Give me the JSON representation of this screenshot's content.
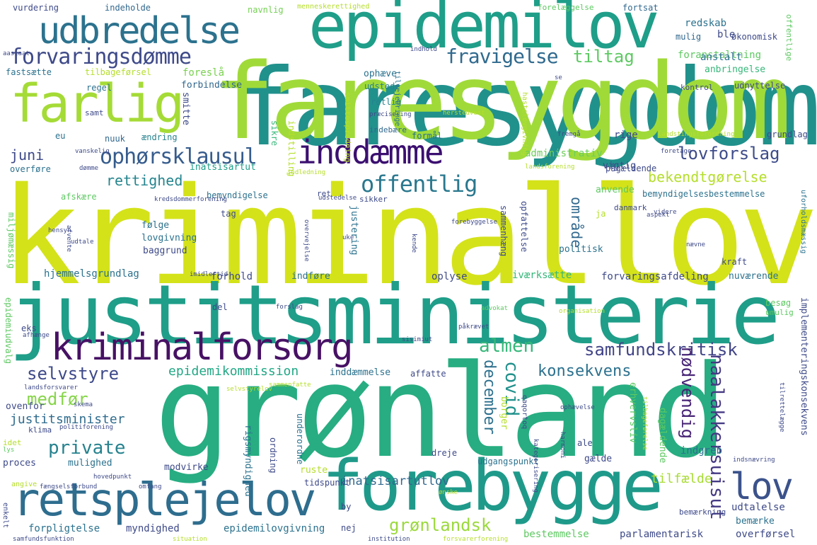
{
  "words": [
    {
      "text": "kriminallov",
      "color": "#d4e21a"
    },
    {
      "text": "grønland",
      "color": "#27ad81"
    },
    {
      "text": "justitsministerie",
      "color": "#1f9e89"
    },
    {
      "text": "faresygdom",
      "color": "#21918c"
    },
    {
      "text": "faresygdom",
      "color": "#a0da39"
    },
    {
      "text": "epidemilov",
      "color": "#1f9e89"
    },
    {
      "text": "forebygge",
      "color": "#1f9a8a"
    },
    {
      "text": "farlig",
      "color": "#a5db36"
    },
    {
      "text": "udbredelse",
      "color": "#2c728e"
    },
    {
      "text": "retsplejelov",
      "color": "#2e6d8e"
    },
    {
      "text": "kriminalforsorg",
      "color": "#471164"
    },
    {
      "text": "inddæmme",
      "color": "#3b0f70"
    },
    {
      "text": "forvaringsdømme",
      "color": "#3e4a89"
    },
    {
      "text": "lov",
      "color": "#3b528b"
    },
    {
      "text": "ophørsklausul",
      "color": "#365c8d"
    },
    {
      "text": "offentlig",
      "color": "#2a788e"
    },
    {
      "text": "fravigelse",
      "color": "#306a8e"
    },
    {
      "text": "lovforslag",
      "color": "#3e4c8a"
    },
    {
      "text": "tiltag",
      "color": "#5ec962"
    },
    {
      "text": "samfundskritisk",
      "color": "#414487"
    },
    {
      "text": "almen",
      "color": "#35b779"
    },
    {
      "text": "konsekvens",
      "color": "#2c718e"
    },
    {
      "text": "private",
      "color": "#26828e"
    },
    {
      "text": "selvstyre",
      "color": "#3e4a89"
    },
    {
      "text": "medfør",
      "color": "#86d549"
    },
    {
      "text": "bekendtgørelse",
      "color": "#b5de2b"
    },
    {
      "text": "rettighed",
      "color": "#25858e"
    },
    {
      "text": "grønlandsk",
      "color": "#9bd93c"
    },
    {
      "text": "epidemikommission",
      "color": "#22a785"
    },
    {
      "text": "juni",
      "color": "#3e4a89"
    },
    {
      "text": "justitsminister",
      "color": "#2f6c8e"
    },
    {
      "text": "covid",
      "color": "#21918c"
    },
    {
      "text": "december",
      "color": "#2d708e"
    },
    {
      "text": "naalakkersuisut",
      "color": "#443983"
    },
    {
      "text": "nødvendig",
      "color": "#482576"
    },
    {
      "text": "område",
      "color": "#31688e"
    },
    {
      "text": "inatsisartutlov",
      "color": "#31688e"
    },
    {
      "text": "tilfælde",
      "color": "#a8db34"
    },
    {
      "text": "vurdering",
      "color": "#3e4a89"
    },
    {
      "text": "indeholde",
      "color": "#31688e"
    },
    {
      "text": "navnlig",
      "color": "#75d054"
    },
    {
      "text": "menneskerettighed",
      "color": "#b5de2b"
    },
    {
      "text": "forelæggelse",
      "color": "#5ec962"
    },
    {
      "text": "fortsat",
      "color": "#31688e"
    },
    {
      "text": "redskab",
      "color": "#2c728e"
    },
    {
      "text": "økonomisk",
      "color": "#3e4a89"
    },
    {
      "text": "offentlige",
      "color": "#5ec962"
    },
    {
      "text": "foranstaltning",
      "color": "#5ec962"
    },
    {
      "text": "mulig",
      "color": "#31688e"
    },
    {
      "text": "ble",
      "color": "#3e4a89"
    },
    {
      "text": "anstalt",
      "color": "#2c728e"
    },
    {
      "text": "anbringelse",
      "color": "#35b779"
    },
    {
      "text": "kontrol",
      "color": "#3e4a89"
    },
    {
      "text": "udnyttelse",
      "color": "#3e4a89"
    },
    {
      "text": "foreslå",
      "color": "#7ad151"
    },
    {
      "text": "forbindelse",
      "color": "#31688e"
    },
    {
      "text": "ophæve",
      "color": "#2c728e"
    },
    {
      "text": "udstede",
      "color": "#26828e"
    },
    {
      "text": "fastsætte",
      "color": "#2c728e"
    },
    {
      "text": "tilbageførsel",
      "color": "#b5de2b"
    },
    {
      "text": "regel",
      "color": "#2c728e"
    },
    {
      "text": "samt",
      "color": "#3e4a89"
    },
    {
      "text": "eu",
      "color": "#2c728e"
    },
    {
      "text": "nuuk",
      "color": "#31688e"
    },
    {
      "text": "ændring",
      "color": "#26828e"
    },
    {
      "text": "smitte",
      "color": "#3e4a89"
    },
    {
      "text": "sikre",
      "color": "#35b779"
    },
    {
      "text": "formål",
      "color": "#2c728e"
    },
    {
      "text": "indebære",
      "color": "#31688e"
    },
    {
      "text": "retlig",
      "color": "#26828e"
    },
    {
      "text": "rige",
      "color": "#3e4a89"
    },
    {
      "text": "grundlag",
      "color": "#3e4a89"
    },
    {
      "text": "vigtig",
      "color": "#3e4a89"
    },
    {
      "text": "administrativ",
      "color": "#6ccd5a"
    },
    {
      "text": "inatsisartut",
      "color": "#1f9e89"
    },
    {
      "text": "pågældende",
      "color": "#3e4a89"
    },
    {
      "text": "overføre",
      "color": "#2c728e"
    },
    {
      "text": "bemyndigelse",
      "color": "#2c728e"
    },
    {
      "text": "ret",
      "color": "#3e4a89"
    },
    {
      "text": "anvende",
      "color": "#5ec962"
    },
    {
      "text": "bemyndigelsesbestemmelse",
      "color": "#2c728e"
    },
    {
      "text": "afskære",
      "color": "#5ec962"
    },
    {
      "text": "tag",
      "color": "#3e4a89"
    },
    {
      "text": "sikker",
      "color": "#3e4a89"
    },
    {
      "text": "følge",
      "color": "#2c728e"
    },
    {
      "text": "lovgivning",
      "color": "#2c728e"
    },
    {
      "text": "baggrund",
      "color": "#3e4a89"
    },
    {
      "text": "justering",
      "color": "#2c728e"
    },
    {
      "text": "sammenhæng",
      "color": "#3e4a89"
    },
    {
      "text": "opfattelse",
      "color": "#3e4a89"
    },
    {
      "text": "politisk",
      "color": "#2c728e"
    },
    {
      "text": "kraft",
      "color": "#3e4a89"
    },
    {
      "text": "danmark",
      "color": "#3e4a89"
    },
    {
      "text": "ja",
      "color": "#b5de2b"
    },
    {
      "text": "hjemmelsgrundlag",
      "color": "#2c728e"
    },
    {
      "text": "forhold",
      "color": "#3e4a89"
    },
    {
      "text": "indføre",
      "color": "#2c728e"
    },
    {
      "text": "oplyse",
      "color": "#3e4a89"
    },
    {
      "text": "iværksætte",
      "color": "#35b779"
    },
    {
      "text": "forvaringsafdeling",
      "color": "#3e4a89"
    },
    {
      "text": "nuværende",
      "color": "#2c728e"
    },
    {
      "text": "epidemiudvalg",
      "color": "#5ec962"
    },
    {
      "text": "eks",
      "color": "#3e4a89"
    },
    {
      "text": "del",
      "color": "#3e4a89"
    },
    {
      "text": "besøg",
      "color": "#5ec962"
    },
    {
      "text": "umulig",
      "color": "#5ec962"
    },
    {
      "text": "implementeringskonsekvens",
      "color": "#3e4a89"
    },
    {
      "text": "inddæmmelse",
      "color": "#2c728e"
    },
    {
      "text": "affatte",
      "color": "#3e4a89"
    },
    {
      "text": "ovenfor",
      "color": "#3e4a89"
    },
    {
      "text": "borger",
      "color": "#b5de2b"
    },
    {
      "text": "dagældende",
      "color": "#5ec962"
    },
    {
      "text": "erhvervsliv",
      "color": "#5ec962"
    },
    {
      "text": "klima",
      "color": "#3e4a89"
    },
    {
      "text": "underordne",
      "color": "#2c728e"
    },
    {
      "text": "dreje",
      "color": "#3e4a89"
    },
    {
      "text": "indgreb",
      "color": "#2c728e"
    },
    {
      "text": "proces",
      "color": "#3e4a89"
    },
    {
      "text": "mulighed",
      "color": "#2c728e"
    },
    {
      "text": "ordning",
      "color": "#3e4a89"
    },
    {
      "text": "ruste",
      "color": "#b5de2b"
    },
    {
      "text": "gælde",
      "color": "#3e4a89"
    },
    {
      "text": "ale",
      "color": "#3e4a89"
    },
    {
      "text": "modvirke",
      "color": "#3e4a89"
    },
    {
      "text": "rigsmyndighed",
      "color": "#2c728e"
    },
    {
      "text": "udgangspunkt",
      "color": "#2c728e"
    },
    {
      "text": "tidspunkt",
      "color": "#3e4a89"
    },
    {
      "text": "forpligtelse",
      "color": "#2c728e"
    },
    {
      "text": "myndighed",
      "color": "#3e4a89"
    },
    {
      "text": "epidemilovgivning",
      "color": "#2c728e"
    },
    {
      "text": "nej",
      "color": "#3e4a89"
    },
    {
      "text": "udtalelse",
      "color": "#3e4a89"
    },
    {
      "text": "bemærke",
      "color": "#2c728e"
    },
    {
      "text": "overførsel",
      "color": "#3e4a89"
    },
    {
      "text": "bestemmelse",
      "color": "#5ec962"
    },
    {
      "text": "parlamentarisk",
      "color": "#3e4a89"
    },
    {
      "text": "bemærkning",
      "color": "#3e4a89"
    },
    {
      "text": "smittespredning",
      "color": "#b5de2b"
    },
    {
      "text": "tilvejebringe",
      "color": "#2c728e"
    },
    {
      "text": "indstilling",
      "color": "#b5de2b"
    },
    {
      "text": "hastelovgivning",
      "color": "#b5de2b"
    },
    {
      "text": "uforholdsmæssig",
      "color": "#2c728e"
    },
    {
      "text": "miljømæssig",
      "color": "#5ec962"
    },
    {
      "text": "kredsdommerforening",
      "color": "#3e4a89"
    },
    {
      "text": "udstedelse",
      "color": "#3e4a89"
    },
    {
      "text": "landstingsforordning",
      "color": "#b5de2b"
    },
    {
      "text": "herstedvest",
      "color": "#b5de2b"
    },
    {
      "text": "præcisering",
      "color": "#3e4a89"
    },
    {
      "text": "fremgå",
      "color": "#3e4a89"
    },
    {
      "text": "foretage",
      "color": "#3e4a89"
    },
    {
      "text": "landsforening",
      "color": "#b5de2b"
    },
    {
      "text": "indledning",
      "color": "#b5de2b"
    },
    {
      "text": "aspekt",
      "color": "#3e4a89"
    },
    {
      "text": "videre",
      "color": "#3e4a89"
    },
    {
      "text": "forebyggelse",
      "color": "#3e4a89"
    },
    {
      "text": "overvejelse",
      "color": "#3e4a89"
    },
    {
      "text": "hensyn",
      "color": "#3e4a89"
    },
    {
      "text": "afvente",
      "color": "#3e4a89"
    },
    {
      "text": "udtale",
      "color": "#3e4a89"
    },
    {
      "text": "kende",
      "color": "#3e4a89"
    },
    {
      "text": "nævne",
      "color": "#3e4a89"
    },
    {
      "text": "hovedpunkt",
      "color": "#3e4a89"
    },
    {
      "text": "imidlertid",
      "color": "#3e4a89"
    },
    {
      "text": "forslag",
      "color": "#3e4a89"
    },
    {
      "text": "advokat",
      "color": "#5ec962"
    },
    {
      "text": "organisation",
      "color": "#b5de2b"
    },
    {
      "text": "påkrævet",
      "color": "#3e4a89"
    },
    {
      "text": "sisimiut",
      "color": "#3e4a89"
    },
    {
      "text": "afhænge",
      "color": "#3e4a89"
    },
    {
      "text": "landsforsvarer",
      "color": "#3e4a89"
    },
    {
      "text": "selvstyrelov",
      "color": "#b5de2b"
    },
    {
      "text": "sammenfatte",
      "color": "#b5de2b"
    },
    {
      "text": "qaqortoq",
      "color": "#3e4a89"
    },
    {
      "text": "skema",
      "color": "#3e4a89"
    },
    {
      "text": "kategorisering",
      "color": "#3e4a89"
    },
    {
      "text": "tilbageførelse",
      "color": "#b5de2b"
    },
    {
      "text": "tilrettelægge",
      "color": "#3e4a89"
    },
    {
      "text": "ophævelse",
      "color": "#3e4a89"
    },
    {
      "text": "harmoni",
      "color": "#3e4a89"
    },
    {
      "text": "indsnævring",
      "color": "#3e4a89"
    },
    {
      "text": "politiforening",
      "color": "#3e4a89"
    },
    {
      "text": "idet",
      "color": "#b5de2b"
    },
    {
      "text": "lys",
      "color": "#5ec962"
    },
    {
      "text": "omfang",
      "color": "#3e4a89"
    },
    {
      "text": "fængselsforbund",
      "color": "#3e4a89"
    },
    {
      "text": "angive",
      "color": "#b5de2b"
    },
    {
      "text": "ønske",
      "color": "#b5de2b"
    },
    {
      "text": "enkelt",
      "color": "#3e4a89"
    },
    {
      "text": "by",
      "color": "#3e4a89"
    },
    {
      "text": "samfundsfunktion",
      "color": "#3e4a89"
    },
    {
      "text": "situation",
      "color": "#b5de2b"
    },
    {
      "text": "institution",
      "color": "#3e4a89"
    },
    {
      "text": "forsvarerforening",
      "color": "#b5de2b"
    },
    {
      "text": "aasiaat",
      "color": "#3e4a89"
    },
    {
      "text": "indhold",
      "color": "#3e4a89"
    },
    {
      "text": "se",
      "color": "#3e4a89"
    },
    {
      "text": "vanskelig",
      "color": "#3e4a89"
    },
    {
      "text": "dømme",
      "color": "#3e4a89"
    },
    {
      "text": "uke",
      "color": "#3e4a89"
    }
  ]
}
